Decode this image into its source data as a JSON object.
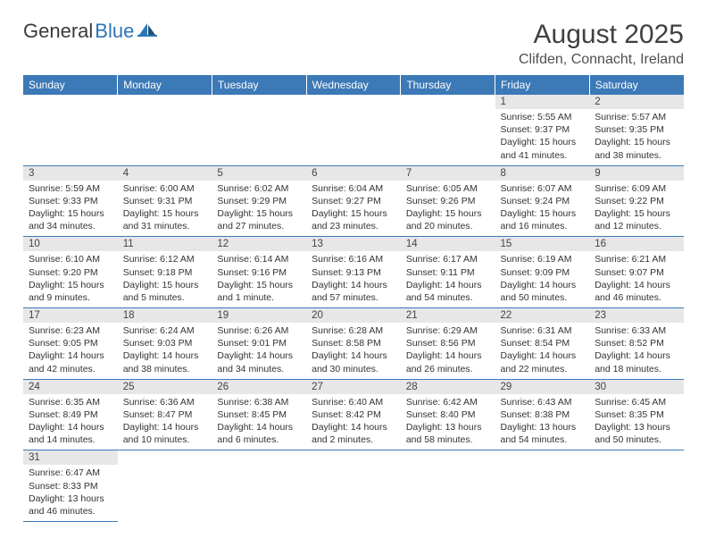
{
  "logo": {
    "text1": "General",
    "text2": "Blue"
  },
  "title": "August 2025",
  "location": "Clifden, Connacht, Ireland",
  "colors": {
    "header_bg": "#3b79b7",
    "header_text": "#ffffff",
    "daynum_bg": "#e7e7e7",
    "border": "#3b79b7",
    "logo_blue": "#2e75b6"
  },
  "weekdays": [
    "Sunday",
    "Monday",
    "Tuesday",
    "Wednesday",
    "Thursday",
    "Friday",
    "Saturday"
  ],
  "weeks": [
    [
      null,
      null,
      null,
      null,
      null,
      {
        "n": "1",
        "sr": "5:55 AM",
        "ss": "9:37 PM",
        "dl": "15 hours and 41 minutes."
      },
      {
        "n": "2",
        "sr": "5:57 AM",
        "ss": "9:35 PM",
        "dl": "15 hours and 38 minutes."
      }
    ],
    [
      {
        "n": "3",
        "sr": "5:59 AM",
        "ss": "9:33 PM",
        "dl": "15 hours and 34 minutes."
      },
      {
        "n": "4",
        "sr": "6:00 AM",
        "ss": "9:31 PM",
        "dl": "15 hours and 31 minutes."
      },
      {
        "n": "5",
        "sr": "6:02 AM",
        "ss": "9:29 PM",
        "dl": "15 hours and 27 minutes."
      },
      {
        "n": "6",
        "sr": "6:04 AM",
        "ss": "9:27 PM",
        "dl": "15 hours and 23 minutes."
      },
      {
        "n": "7",
        "sr": "6:05 AM",
        "ss": "9:26 PM",
        "dl": "15 hours and 20 minutes."
      },
      {
        "n": "8",
        "sr": "6:07 AM",
        "ss": "9:24 PM",
        "dl": "15 hours and 16 minutes."
      },
      {
        "n": "9",
        "sr": "6:09 AM",
        "ss": "9:22 PM",
        "dl": "15 hours and 12 minutes."
      }
    ],
    [
      {
        "n": "10",
        "sr": "6:10 AM",
        "ss": "9:20 PM",
        "dl": "15 hours and 9 minutes."
      },
      {
        "n": "11",
        "sr": "6:12 AM",
        "ss": "9:18 PM",
        "dl": "15 hours and 5 minutes."
      },
      {
        "n": "12",
        "sr": "6:14 AM",
        "ss": "9:16 PM",
        "dl": "15 hours and 1 minute."
      },
      {
        "n": "13",
        "sr": "6:16 AM",
        "ss": "9:13 PM",
        "dl": "14 hours and 57 minutes."
      },
      {
        "n": "14",
        "sr": "6:17 AM",
        "ss": "9:11 PM",
        "dl": "14 hours and 54 minutes."
      },
      {
        "n": "15",
        "sr": "6:19 AM",
        "ss": "9:09 PM",
        "dl": "14 hours and 50 minutes."
      },
      {
        "n": "16",
        "sr": "6:21 AM",
        "ss": "9:07 PM",
        "dl": "14 hours and 46 minutes."
      }
    ],
    [
      {
        "n": "17",
        "sr": "6:23 AM",
        "ss": "9:05 PM",
        "dl": "14 hours and 42 minutes."
      },
      {
        "n": "18",
        "sr": "6:24 AM",
        "ss": "9:03 PM",
        "dl": "14 hours and 38 minutes."
      },
      {
        "n": "19",
        "sr": "6:26 AM",
        "ss": "9:01 PM",
        "dl": "14 hours and 34 minutes."
      },
      {
        "n": "20",
        "sr": "6:28 AM",
        "ss": "8:58 PM",
        "dl": "14 hours and 30 minutes."
      },
      {
        "n": "21",
        "sr": "6:29 AM",
        "ss": "8:56 PM",
        "dl": "14 hours and 26 minutes."
      },
      {
        "n": "22",
        "sr": "6:31 AM",
        "ss": "8:54 PM",
        "dl": "14 hours and 22 minutes."
      },
      {
        "n": "23",
        "sr": "6:33 AM",
        "ss": "8:52 PM",
        "dl": "14 hours and 18 minutes."
      }
    ],
    [
      {
        "n": "24",
        "sr": "6:35 AM",
        "ss": "8:49 PM",
        "dl": "14 hours and 14 minutes."
      },
      {
        "n": "25",
        "sr": "6:36 AM",
        "ss": "8:47 PM",
        "dl": "14 hours and 10 minutes."
      },
      {
        "n": "26",
        "sr": "6:38 AM",
        "ss": "8:45 PM",
        "dl": "14 hours and 6 minutes."
      },
      {
        "n": "27",
        "sr": "6:40 AM",
        "ss": "8:42 PM",
        "dl": "14 hours and 2 minutes."
      },
      {
        "n": "28",
        "sr": "6:42 AM",
        "ss": "8:40 PM",
        "dl": "13 hours and 58 minutes."
      },
      {
        "n": "29",
        "sr": "6:43 AM",
        "ss": "8:38 PM",
        "dl": "13 hours and 54 minutes."
      },
      {
        "n": "30",
        "sr": "6:45 AM",
        "ss": "8:35 PM",
        "dl": "13 hours and 50 minutes."
      }
    ],
    [
      {
        "n": "31",
        "sr": "6:47 AM",
        "ss": "8:33 PM",
        "dl": "13 hours and 46 minutes."
      },
      null,
      null,
      null,
      null,
      null,
      null
    ]
  ],
  "labels": {
    "sunrise": "Sunrise:",
    "sunset": "Sunset:",
    "daylight": "Daylight:"
  }
}
